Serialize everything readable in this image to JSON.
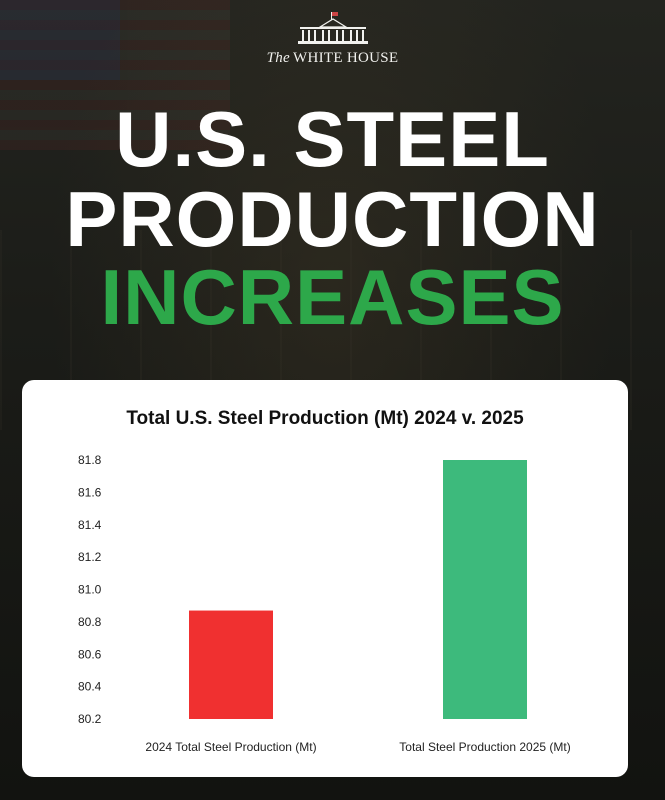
{
  "header": {
    "brand_the": "The",
    "brand_name": "WHITE HOUSE",
    "title_line1": "U.S. STEEL",
    "title_line2": "PRODUCTION",
    "title_line3": "INCREASES"
  },
  "colors": {
    "accent_green": "#2da84a",
    "bar_2024": "#f03030",
    "bar_2025": "#3dba7c"
  },
  "chart_data": {
    "type": "bar",
    "title": "Total U.S. Steel Production (Mt) 2024 v. 2025",
    "categories": [
      "2024 Total Steel Production (Mt)",
      "Total Steel Production 2025 (Mt)"
    ],
    "values": [
      80.87,
      81.8
    ],
    "yticks": [
      "80.2",
      "80.4",
      "80.6",
      "80.8",
      "81.0",
      "81.2",
      "81.4",
      "81.6",
      "81.8"
    ],
    "ylim": [
      80.2,
      81.8
    ],
    "xlabel": "",
    "ylabel": ""
  }
}
